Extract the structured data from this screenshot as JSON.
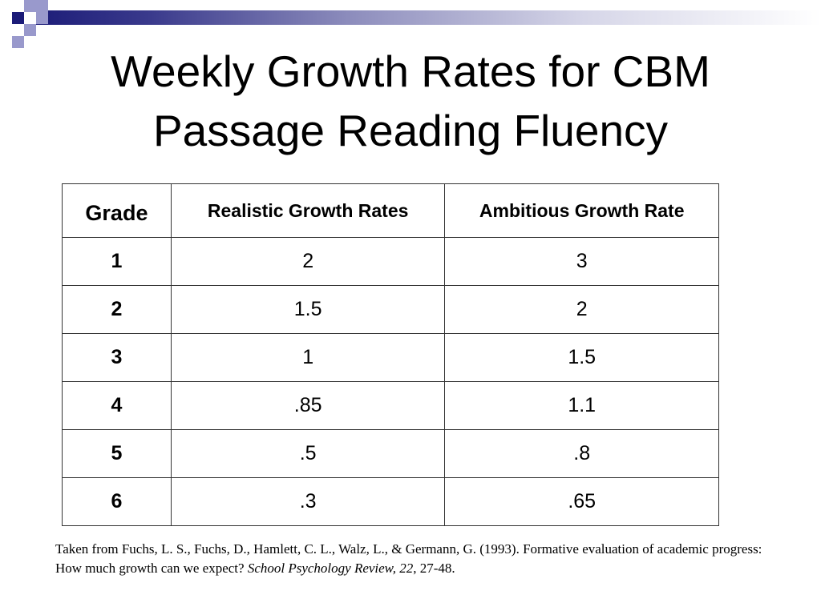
{
  "slide": {
    "title_line1": "Weekly Growth Rates for CBM",
    "title_line2": "Passage Reading Fluency"
  },
  "table": {
    "headers": [
      "Grade",
      "Realistic Growth Rates",
      "Ambitious Growth Rate"
    ],
    "rows": [
      [
        "1",
        "2",
        "3"
      ],
      [
        "2",
        "1.5",
        "2"
      ],
      [
        "3",
        "1",
        "1.5"
      ],
      [
        "4",
        ".85",
        "1.1"
      ],
      [
        "5",
        ".5",
        ".8"
      ],
      [
        "6",
        ".3",
        ".65"
      ]
    ]
  },
  "citation": {
    "text_before": "Taken from Fuchs, L. S., Fuchs, D., Hamlett, C. L., Walz, L., & Germann, G. (1993). Formative evaluation of academic progress: How much growth can we expect? ",
    "journal": "School Psychology Review, 22",
    "text_after": ", 27-48."
  },
  "colors": {
    "deco_dark": "#1c1c78",
    "deco_light": "#9999cc",
    "table_border": "#333333"
  }
}
